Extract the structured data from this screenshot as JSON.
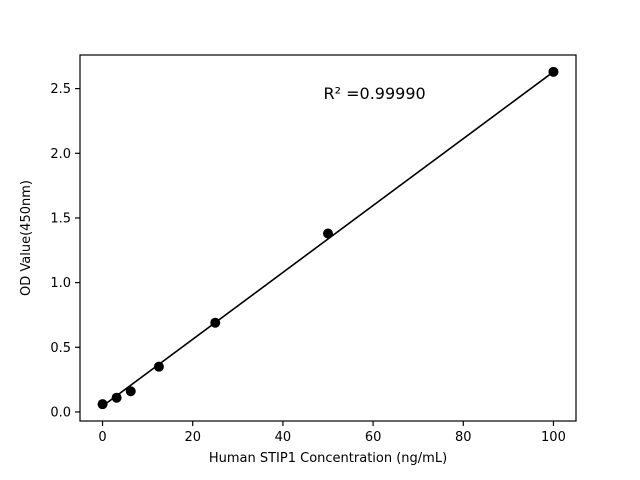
{
  "chart_data": {
    "type": "scatter",
    "title": "",
    "xlabel": "Human STIP1 Concentration (ng/mL)",
    "ylabel": "OD Value(450nm)",
    "x": [
      0,
      3.125,
      6.25,
      12.5,
      25,
      50,
      100
    ],
    "y": [
      0.06,
      0.11,
      0.16,
      0.35,
      0.69,
      1.38,
      2.63
    ],
    "fit_line": {
      "x": [
        0,
        100
      ],
      "y": [
        0.045,
        2.63
      ]
    },
    "annotation": {
      "text": "R² =0.99990",
      "x": 49,
      "y": 2.42
    },
    "xlim": [
      -5,
      105
    ],
    "ylim": [
      -0.07,
      2.76
    ],
    "x_ticks": [
      0,
      20,
      40,
      60,
      80,
      100
    ],
    "x_tick_labels": [
      "0",
      "20",
      "40",
      "60",
      "80",
      "100"
    ],
    "y_ticks": [
      0.0,
      0.5,
      1.0,
      1.5,
      2.0,
      2.5
    ],
    "y_tick_labels": [
      "0.0",
      "0.5",
      "1.0",
      "1.5",
      "2.0",
      "2.5"
    ],
    "grid": false,
    "legend": "none",
    "marker_color": "#000000",
    "line_color": "#000000",
    "background_color": "#ffffff"
  }
}
